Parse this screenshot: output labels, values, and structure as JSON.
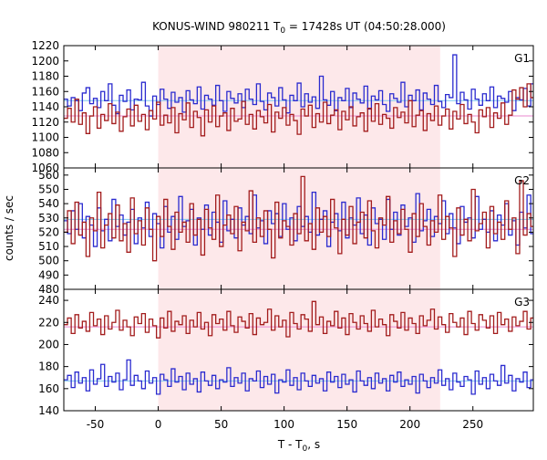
{
  "chart_data": {
    "type": "line",
    "title": "KONUS-WIND 980211 T",
    "title_sub": "0",
    "title_rest": " = 17428s UT (04:50:28.000)",
    "xlabel": "T - T",
    "xlabel_sub": "0",
    "xlabel_rest": ", s",
    "ylabel": "counts / sec",
    "xlim": [
      -75,
      298
    ],
    "xticks": [
      -50,
      0,
      50,
      100,
      150,
      200,
      250
    ],
    "xtick_labels": [
      "-50",
      "0",
      "50",
      "100",
      "150",
      "200",
      "250"
    ],
    "highlight_interval": [
      0,
      224
    ],
    "highlight_color": "#fde8ea",
    "bin_width": 2.944,
    "panels": [
      {
        "name": "G1",
        "ylim": [
          1060,
          1220
        ],
        "yticks": [
          1060,
          1080,
          1100,
          1120,
          1140,
          1160,
          1180,
          1200,
          1220
        ],
        "ytick_labels": [
          "1060",
          "1080",
          "1100",
          "1120",
          "1140",
          "1160",
          "1180",
          "1200",
          "1220"
        ],
        "series": [
          {
            "color": "#2b2bcf",
            "background": 1148,
            "bg_color": "#7fc8ef",
            "x_start": -75.0,
            "values": [
              1150,
              1141,
              1152,
              1148,
              1135,
              1158,
              1165,
              1144,
              1151,
              1139,
              1160,
              1148,
              1170,
              1142,
              1131,
              1155,
              1147,
              1162,
              1136,
              1150,
              1149,
              1172,
              1141,
              1128,
              1154,
              1143,
              1163,
              1150,
              1138,
              1159,
              1146,
              1152,
              1133,
              1161,
              1149,
              1144,
              1166,
              1137,
              1155,
              1150,
              1142,
              1168,
              1148,
              1134,
              1160,
              1151,
              1145,
              1157,
              1139,
              1163,
              1150,
              1143,
              1170,
              1147,
              1136,
              1158,
              1152,
              1141,
              1165,
              1149,
              1132,
              1155,
              1148,
              1171,
              1140,
              1157,
              1146,
              1153,
              1138,
              1180,
              1149,
              1142,
              1160,
              1135,
              1152,
              1148,
              1164,
              1139,
              1158,
              1150,
              1145,
              1167,
              1137,
              1154,
              1149,
              1161,
              1143,
              1134,
              1157,
              1151,
              1146,
              1172,
              1140,
              1155,
              1148,
              1162,
              1136,
              1158,
              1150,
              1143,
              1168,
              1147,
              1139,
              1156,
              1152,
              1208,
              1144,
              1159,
              1149,
              1137,
              1163,
              1150,
              1142,
              1157,
              1148,
              1166,
              1139,
              1154,
              1151,
              1146,
              1160,
              1135,
              1152,
              1149,
              1164,
              1141,
              1170,
              1155,
              1143,
              1158,
              1150
            ]
          },
          {
            "color": "#a31d1d",
            "background": 1128,
            "bg_color": "#e887cf",
            "x_start": -75.0,
            "values": [
              1125,
              1138,
              1120,
              1150,
              1117,
              1132,
              1105,
              1128,
              1140,
              1112,
              1130,
              1122,
              1144,
              1118,
              1133,
              1108,
              1127,
              1137,
              1115,
              1142,
              1121,
              1130,
              1110,
              1135,
              1124,
              1146,
              1116,
              1129,
              1119,
              1139,
              1106,
              1131,
              1123,
              1145,
              1113,
              1134,
              1126,
              1102,
              1136,
              1120,
              1141,
              1114,
              1128,
              1132,
              1109,
              1138,
              1121,
              1124,
              1147,
              1117,
              1130,
              1111,
              1135,
              1127,
              1119,
              1143,
              1107,
              1133,
              1125,
              1139,
              1116,
              1130,
              1122,
              1104,
              1137,
              1128,
              1142,
              1113,
              1131,
              1120,
              1146,
              1118,
              1129,
              1136,
              1110,
              1134,
              1123,
              1140,
              1115,
              1127,
              1132,
              1108,
              1138,
              1121,
              1144,
              1117,
              1130,
              1125,
              1112,
              1139,
              1126,
              1133,
              1119,
              1148,
              1114,
              1129,
              1135,
              1109,
              1131,
              1122,
              1141,
              1116,
              1128,
              1137,
              1111,
              1134,
              1124,
              1143,
              1118,
              1130,
              1120,
              1106,
              1136,
              1127,
              1139,
              1113,
              1132,
              1125,
              1145,
              1117,
              1129,
              1162,
              1150,
              1165,
              1140,
              1170,
              1152,
              1135,
              1160,
              1144,
              1130,
              1120,
              1155,
              1138,
              1128,
              1150
            ]
          }
        ]
      },
      {
        "name": "G2",
        "ylim": [
          480,
          565
        ],
        "yticks": [
          480,
          490,
          500,
          510,
          520,
          530,
          540,
          550,
          560
        ],
        "ytick_labels": [
          "480",
          "490",
          "500",
          "510",
          "520",
          "530",
          "540",
          "550",
          "560"
        ],
        "series": [
          {
            "color": "#2b2bcf",
            "background": 529,
            "bg_color": "#7fc8ef",
            "x_start": -75.0,
            "values": [
              528,
              519,
              535,
              522,
              540,
              516,
              531,
              525,
              510,
              537,
              521,
              529,
              514,
              543,
              524,
              532,
              518,
              527,
              536,
              512,
              530,
              523,
              541,
              517,
              533,
              526,
              509,
              538,
              520,
              531,
              515,
              545,
              524,
              528,
              536,
              511,
              530,
              522,
              539,
              518,
              534,
              527,
              513,
              542,
              521,
              529,
              516,
              537,
              525,
              531,
              519,
              546,
              523,
              528,
              512,
              535,
              526,
              533,
              517,
              540,
              522,
              530,
              514,
              538,
              524,
              531,
              520,
              548,
              518,
              529,
              535,
              510,
              527,
              533,
              521,
              541,
              516,
              530,
              525,
              544,
              519,
              532,
              511,
              537,
              526,
              529,
              515,
              543,
              522,
              534,
              518,
              539,
              524,
              530,
              513,
              547,
              521,
              528,
              536,
              517,
              531,
              526,
              542,
              519,
              533,
              523,
              512,
              538,
              527,
              530,
              516,
              545,
              522,
              529,
              520,
              535,
              514,
              532,
              525,
              540,
              518,
              528,
              511,
              534,
              523,
              546,
              519,
              530,
              515,
              525
            ]
          },
          {
            "color": "#a31d1d",
            "background": 522,
            "bg_color": "#e887cf",
            "x_start": -75.0,
            "values": [
              520,
              535,
              512,
              541,
              518,
              527,
              503,
              530,
              521,
              548,
              509,
              525,
              533,
              516,
              539,
              514,
              526,
              506,
              544,
              519,
              528,
              511,
              537,
              522,
              500,
              531,
              517,
              543,
              524,
              508,
              534,
              520,
              527,
              513,
              540,
              518,
              529,
              504,
              536,
              523,
              515,
              546,
              510,
              525,
              532,
              519,
              538,
              507,
              527,
              521,
              549,
              513,
              530,
              517,
              535,
              522,
              502,
              541,
              516,
              528,
              524,
              511,
              533,
              519,
              559,
              514,
              526,
              508,
              537,
              520,
              531,
              517,
              543,
              523,
              505,
              529,
              518,
              538,
              512,
              527,
              534,
              516,
              542,
              521,
              509,
              530,
              525,
              545,
              513,
              528,
              519,
              536,
              522,
              506,
              533,
              517,
              540,
              524,
              511,
              528,
              520,
              546,
              515,
              531,
              523,
              503,
              537,
              518,
              529,
              514,
              550,
              521,
              526,
              534,
              509,
              538,
              519,
              527,
              515,
              542,
              522,
              530,
              505,
              556,
              518,
              533,
              524,
              511,
              540,
              520
            ]
          }
        ]
      },
      {
        "name": "G3",
        "ylim": [
          140,
          250
        ],
        "yticks": [
          140,
          160,
          180,
          200,
          220,
          240
        ],
        "ytick_labels": [
          "140",
          "160",
          "180",
          "200",
          "220",
          "240"
        ],
        "series": [
          {
            "color": "#a31d1d",
            "background": 216,
            "bg_color": "#e887cf",
            "x_start": -75.0,
            "values": [
              218,
              224,
              210,
              227,
              215,
              221,
              212,
              229,
              217,
              223,
              209,
              226,
              214,
              220,
              231,
              213,
              222,
              216,
              208,
              225,
              219,
              228,
              211,
              223,
              217,
              206,
              224,
              215,
              230,
              212,
              221,
              218,
              226,
              210,
              222,
              216,
              229,
              214,
              220,
              208,
              227,
              219,
              223,
              213,
              230,
              217,
              211,
              225,
              221,
              215,
              228,
              209,
              224,
              218,
              220,
              232,
              213,
              226,
              216,
              222,
              207,
              229,
              219,
              214,
              227,
              223,
              212,
              239,
              218,
              225,
              210,
              221,
              217,
              230,
              215,
              224,
              209,
              228,
              220,
              214,
              226,
              219,
              212,
              231,
              216,
              223,
              218,
              208,
              227,
              221,
              215,
              229,
              213,
              224,
              219,
              210,
              226,
              217,
              222,
              232,
              214,
              225,
              218,
              211,
              228,
              220,
              216,
              224,
              209,
              230,
              219,
              213,
              227,
              222,
              215,
              226,
              210,
              229,
              218,
              223,
              212,
              225,
              217,
              221,
              230,
              214,
              224,
              209,
              227,
              219
            ]
          },
          {
            "color": "#2b2bcf",
            "background": 167,
            "bg_color": "#7fc8ef",
            "x_start": -75.0,
            "values": [
              168,
              172,
              161,
              175,
              165,
              170,
              158,
              177,
              164,
              169,
              182,
              162,
              171,
              166,
              174,
              159,
              168,
              186,
              163,
              172,
              167,
              160,
              176,
              165,
              170,
              155,
              173,
              168,
              162,
              178,
              166,
              171,
              159,
              174,
              164,
              169,
              157,
              175,
              167,
              163,
              172,
              160,
              168,
              166,
              179,
              162,
              170,
              165,
              174,
              158,
              169,
              167,
              176,
              161,
              171,
              164,
              173,
              156,
              168,
              166,
              177,
              163,
              170,
              159,
              174,
              167,
              162,
              172,
              165,
              169,
              158,
              175,
              166,
              171,
              161,
              173,
              164,
              168,
              157,
              176,
              167,
              163,
              170,
              160,
              174,
              165,
              169,
              158,
              172,
              166,
              175,
              162,
              168,
              164,
              171,
              156,
              173,
              167,
              161,
              170,
              165,
              177,
              163,
              169,
              159,
              174,
              166,
              162,
              171,
              168,
              155,
              176,
              164,
              170,
              160,
              173,
              167,
              163,
              181,
              165,
              172,
              158,
              169,
              166,
              175,
              161,
              168,
              184,
              162,
              170
            ]
          }
        ]
      }
    ]
  }
}
